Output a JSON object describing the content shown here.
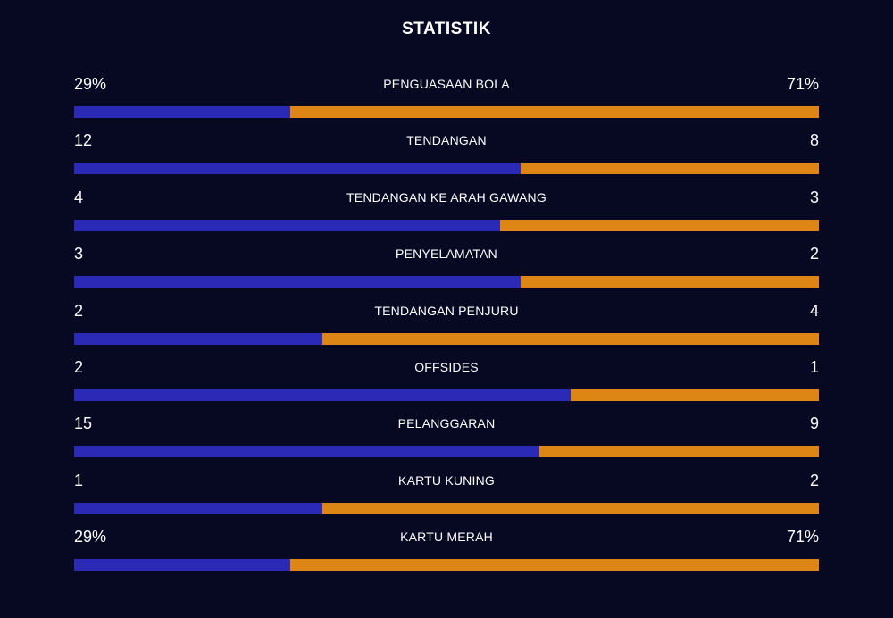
{
  "title": "STATISTIK",
  "colors": {
    "home": "#2a2ab6",
    "away": "#dd8515",
    "background": "#070822"
  },
  "chart_data": {
    "type": "bar",
    "title": "STATISTIK",
    "categories": [
      "PENGUASAAN BOLA",
      "TENDANGAN",
      "TENDANGAN KE ARAH GAWANG",
      "PENYELAMATAN",
      "TENDANGAN PENJURU",
      "OFFSIDES",
      "PELANGGARAN",
      "KARTU KUNING",
      "KARTU MERAH"
    ],
    "rows": [
      {
        "label": "PENGUASAAN BOLA",
        "home": "29%",
        "away": "71%",
        "home_value": 29,
        "away_value": 71
      },
      {
        "label": "TENDANGAN",
        "home": "12",
        "away": "8",
        "home_value": 12,
        "away_value": 8
      },
      {
        "label": "TENDANGAN KE ARAH GAWANG",
        "home": "4",
        "away": "3",
        "home_value": 4,
        "away_value": 3
      },
      {
        "label": "PENYELAMATAN",
        "home": "3",
        "away": "2",
        "home_value": 3,
        "away_value": 2
      },
      {
        "label": "TENDANGAN PENJURU",
        "home": "2",
        "away": "4",
        "home_value": 2,
        "away_value": 4
      },
      {
        "label": "OFFSIDES",
        "home": "2",
        "away": "1",
        "home_value": 2,
        "away_value": 1
      },
      {
        "label": "PELANGGARAN",
        "home": "15",
        "away": "9",
        "home_value": 15,
        "away_value": 9
      },
      {
        "label": "KARTU KUNING",
        "home": "1",
        "away": "2",
        "home_value": 1,
        "away_value": 2
      },
      {
        "label": "KARTU MERAH",
        "home": "29%",
        "away": "71%",
        "home_value": 29,
        "away_value": 71
      }
    ]
  }
}
